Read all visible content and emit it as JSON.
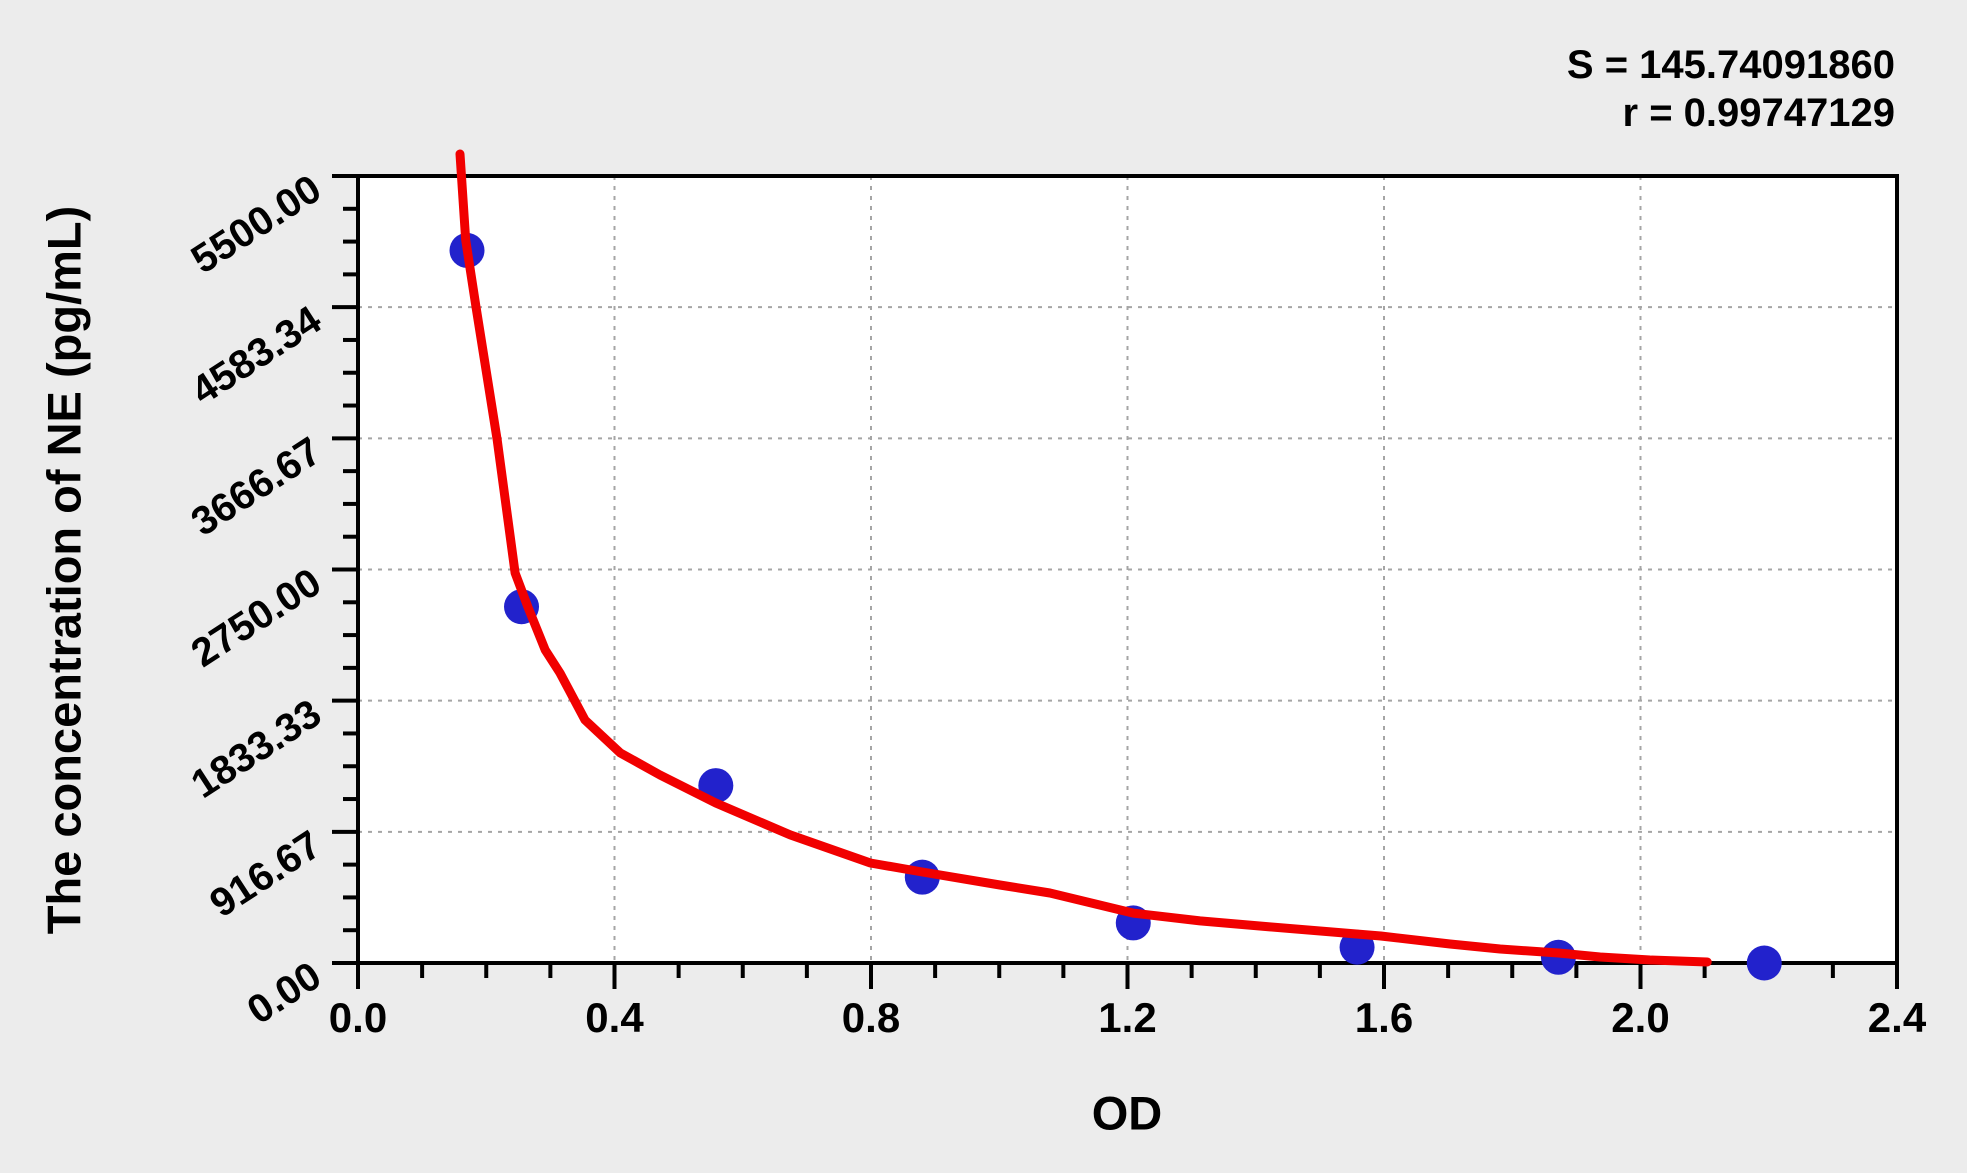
{
  "annotations": {
    "s_line": "S = 145.74091860",
    "r_line": "r = 0.99747129"
  },
  "chart_data": {
    "type": "scatter",
    "title": "",
    "xlabel": "OD",
    "ylabel": "The concentration of NE (pg/mL)",
    "xlim": [
      0,
      2.4
    ],
    "ylim": [
      0,
      5500
    ],
    "x_tick_values": [
      0,
      0.4,
      0.8,
      1.2,
      1.6,
      2.0,
      2.4
    ],
    "x_tick_labels": [
      "0.0",
      "0.4",
      "0.8",
      "1.2",
      "1.6",
      "2.0",
      "2.4"
    ],
    "x_minor_step": 0.1,
    "y_tick_values": [
      0,
      916.67,
      1833.33,
      2750.0,
      3666.67,
      4583.34,
      5500.0
    ],
    "y_tick_labels": [
      "0.00",
      "916.67",
      "1833.33",
      "2750.00",
      "3666.67",
      "4583.34",
      "5500.00"
    ],
    "y_minor_step": 229.1667,
    "grid": "dotted",
    "fit_statistics": {
      "S": 145.7409186,
      "r": 0.99747129
    },
    "points": [
      {
        "od": 0.17,
        "conc": 4980
      },
      {
        "od": 0.255,
        "conc": 2490
      },
      {
        "od": 0.558,
        "conc": 1240
      },
      {
        "od": 0.88,
        "conc": 600
      },
      {
        "od": 1.209,
        "conc": 280
      },
      {
        "od": 1.558,
        "conc": 110
      },
      {
        "od": 1.872,
        "conc": 40
      },
      {
        "od": 2.193,
        "conc": 0
      }
    ],
    "curve": [
      [
        0.159,
        5654
      ],
      [
        0.168,
        5053
      ],
      [
        0.184,
        4585
      ],
      [
        0.217,
        3655
      ],
      [
        0.245,
        2726
      ],
      [
        0.265,
        2488
      ],
      [
        0.292,
        2188
      ],
      [
        0.315,
        2027
      ],
      [
        0.354,
        1698
      ],
      [
        0.409,
        1468
      ],
      [
        0.471,
        1314
      ],
      [
        0.558,
        1118
      ],
      [
        0.674,
        895
      ],
      [
        0.799,
        699
      ],
      [
        0.88,
        636
      ],
      [
        1.001,
        545
      ],
      [
        1.079,
        489
      ],
      [
        1.209,
        349
      ],
      [
        1.313,
        294
      ],
      [
        1.422,
        252
      ],
      [
        1.595,
        189
      ],
      [
        1.703,
        133
      ],
      [
        1.781,
        98
      ],
      [
        1.872,
        70
      ],
      [
        1.937,
        42
      ],
      [
        2.015,
        21
      ],
      [
        2.104,
        7
      ]
    ],
    "colors": {
      "point": "#2222cc",
      "curve": "#f10000",
      "grid": "#a5a5a5",
      "frame": "#000000",
      "plot_background": "#ffffff",
      "page_background": "#ececec"
    }
  }
}
